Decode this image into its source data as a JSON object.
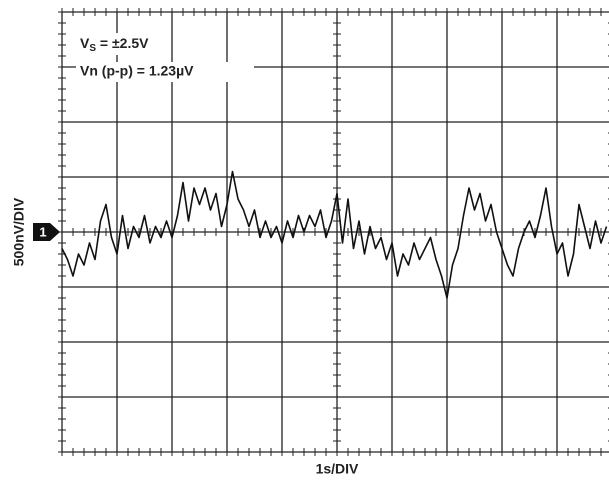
{
  "chart_data": {
    "type": "line",
    "x_label": "1s/DIV",
    "y_label": "500nV/DIV",
    "channel_marker": "1",
    "annotations": [
      {
        "main": "V",
        "sub": "S",
        "text": " = ±2.5V"
      },
      {
        "text": "Vn (p-p) = 1.23µV"
      }
    ],
    "xlim": [
      0,
      10
    ],
    "ylim": [
      -4,
      4
    ],
    "xticks": [
      0,
      1,
      2,
      3,
      4,
      5,
      6,
      7,
      8,
      9,
      10
    ],
    "yticks": [
      -4,
      -3,
      -2,
      -1,
      0,
      1,
      2,
      3,
      4
    ],
    "grid": true,
    "series": [
      {
        "color": "#111111",
        "x": [
          0,
          0.1,
          0.2,
          0.3,
          0.4,
          0.5,
          0.6,
          0.7,
          0.8,
          0.9,
          1,
          1.1,
          1.2,
          1.3,
          1.4,
          1.5,
          1.6,
          1.7,
          1.8,
          1.9,
          2,
          2.1,
          2.2,
          2.3,
          2.4,
          2.5,
          2.6,
          2.7,
          2.8,
          2.9,
          3,
          3.1,
          3.2,
          3.3,
          3.4,
          3.5,
          3.6,
          3.7,
          3.8,
          3.9,
          4,
          4.1,
          4.2,
          4.3,
          4.4,
          4.5,
          4.6,
          4.7,
          4.8,
          4.9,
          5,
          5.1,
          5.2,
          5.3,
          5.4,
          5.5,
          5.6,
          5.7,
          5.8,
          5.9,
          6,
          6.1,
          6.2,
          6.3,
          6.4,
          6.5,
          6.6,
          6.7,
          6.8,
          6.9,
          7,
          7.1,
          7.2,
          7.3,
          7.4,
          7.5,
          7.6,
          7.7,
          7.8,
          7.9,
          8,
          8.1,
          8.2,
          8.3,
          8.4,
          8.5,
          8.6,
          8.7,
          8.8,
          8.9,
          9,
          9.1,
          9.2,
          9.3,
          9.4,
          9.5,
          9.6,
          9.7,
          9.8,
          9.9
        ],
        "values": [
          -0.3,
          -0.5,
          -0.8,
          -0.4,
          -0.6,
          -0.2,
          -0.5,
          0.2,
          0.5,
          -0.1,
          -0.4,
          0.3,
          -0.3,
          0.1,
          -0.1,
          0.3,
          -0.2,
          0.1,
          -0.1,
          0.2,
          -0.1,
          0.3,
          0.9,
          0.2,
          0.8,
          0.5,
          0.8,
          0.4,
          0.7,
          0.1,
          0.5,
          1.1,
          0.6,
          0.4,
          0.1,
          0.4,
          -0.1,
          0.2,
          -0.1,
          0.1,
          -0.2,
          0.2,
          -0.1,
          0.3,
          0.0,
          0.3,
          0.1,
          0.4,
          -0.1,
          0.2,
          0.7,
          -0.2,
          0.6,
          -0.3,
          0.2,
          -0.4,
          0.1,
          -0.3,
          -0.1,
          -0.5,
          -0.2,
          -0.8,
          -0.4,
          -0.6,
          -0.2,
          -0.5,
          -0.3,
          -0.1,
          -0.5,
          -0.8,
          -1.2,
          -0.6,
          -0.3,
          0.3,
          0.8,
          0.4,
          0.7,
          0.2,
          0.5,
          0.0,
          -0.3,
          -0.6,
          -0.8,
          -0.3,
          0.0,
          0.2,
          -0.1,
          0.3,
          0.8,
          0.1,
          -0.4,
          -0.2,
          -0.8,
          -0.4,
          0.5,
          0.1,
          -0.3,
          0.2,
          -0.2,
          0.1
        ]
      }
    ]
  }
}
